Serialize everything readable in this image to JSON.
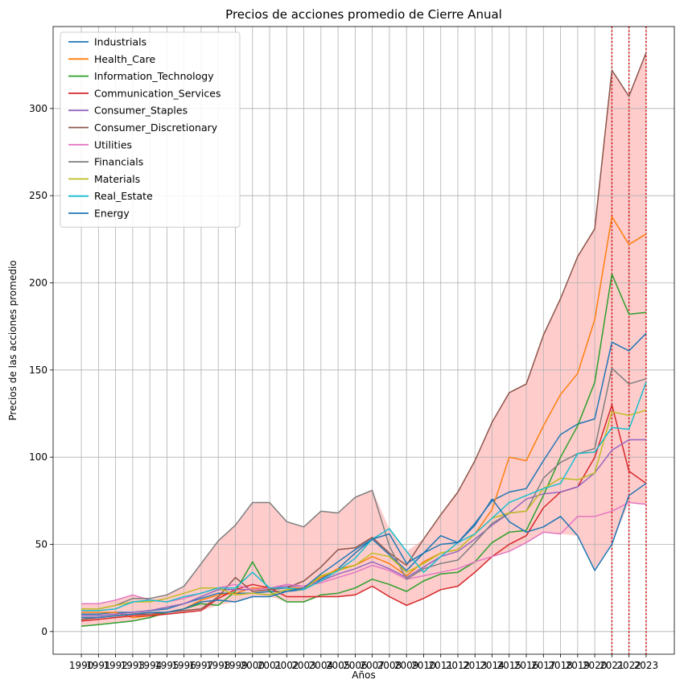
{
  "chart_data": {
    "type": "line",
    "title": "Precios de acciones promedio de Cierre Anual",
    "xlabel": "Años",
    "ylabel": "Precios de las acciones promedio",
    "x": [
      1990,
      1991,
      1992,
      1993,
      1994,
      1995,
      1996,
      1997,
      1998,
      1999,
      2000,
      2001,
      2002,
      2003,
      2004,
      2005,
      2006,
      2007,
      2008,
      2009,
      2010,
      2011,
      2012,
      2013,
      2014,
      2015,
      2016,
      2017,
      2018,
      2019,
      2020,
      2021,
      2022,
      2023
    ],
    "x_tick_labels": [
      "1990",
      "1991",
      "1992",
      "1993",
      "1994",
      "1995",
      "1996",
      "1997",
      "1998",
      "1999",
      "2000",
      "2001",
      "2002",
      "2003",
      "2004",
      "2005",
      "2006",
      "2007",
      "2008",
      "2009",
      "2010",
      "2011",
      "2012",
      "2013",
      "2014",
      "2015",
      "2016",
      "2017",
      "2018",
      "2019",
      "2020",
      "2021",
      "2022",
      "2023"
    ],
    "ylim": [
      -13,
      347
    ],
    "y_ticks": [
      0,
      50,
      100,
      150,
      200,
      250,
      300
    ],
    "grid": true,
    "legend_position": "top-left",
    "shaded_band": {
      "between": [
        "min",
        "max"
      ],
      "color": "#ffcccc"
    },
    "vertical_lines": {
      "x": [
        2021,
        2022,
        2023
      ],
      "color": "#dd0000",
      "style": "dotted"
    },
    "series": [
      {
        "name": "Industrials",
        "color": "#1f77b4",
        "values": [
          10,
          10,
          11,
          11,
          12,
          13,
          16,
          19,
          22,
          22,
          22,
          23,
          23,
          24,
          30,
          36,
          45,
          53,
          44,
          35,
          45,
          55,
          51,
          62,
          75,
          80,
          82,
          98,
          113,
          119,
          122,
          166,
          161,
          171
        ]
      },
      {
        "name": "Health_Care",
        "color": "#ff7f0e",
        "values": [
          11,
          11,
          11,
          8,
          9,
          11,
          13,
          18,
          21,
          22,
          25,
          25,
          25,
          25,
          31,
          36,
          38,
          43,
          39,
          32,
          40,
          45,
          47,
          56,
          70,
          100,
          98,
          118,
          136,
          148,
          179,
          238,
          222,
          228
        ]
      },
      {
        "name": "Information_Technology",
        "color": "#2ca02c",
        "values": [
          3,
          4,
          5,
          6,
          8,
          11,
          13,
          16,
          15,
          23,
          40,
          23,
          17,
          17,
          21,
          22,
          25,
          30,
          27,
          23,
          29,
          33,
          34,
          40,
          51,
          57,
          58,
          78,
          100,
          118,
          143,
          205,
          182,
          183
        ]
      },
      {
        "name": "Communication_Services",
        "color": "#d62728",
        "values": [
          6,
          7,
          8,
          9,
          9,
          10,
          11,
          12,
          19,
          24,
          27,
          25,
          20,
          20,
          20,
          20,
          21,
          26,
          20,
          15,
          19,
          24,
          26,
          34,
          43,
          50,
          55,
          71,
          80,
          83,
          100,
          130,
          92,
          85
        ]
      },
      {
        "name": "Consumer_Staples",
        "color": "#9467bd",
        "values": [
          9,
          9,
          10,
          11,
          12,
          14,
          16,
          20,
          24,
          24,
          24,
          25,
          26,
          26,
          29,
          33,
          36,
          40,
          36,
          31,
          37,
          43,
          46,
          53,
          61,
          68,
          76,
          79,
          80,
          83,
          91,
          104,
          110,
          110
        ]
      },
      {
        "name": "Consumer_Discretionary",
        "color": "#8c564b",
        "values": [
          7,
          8,
          9,
          10,
          10,
          11,
          12,
          13,
          20,
          31,
          23,
          24,
          25,
          29,
          37,
          47,
          48,
          54,
          45,
          38,
          53,
          67,
          80,
          98,
          120,
          137,
          142,
          170,
          191,
          215,
          231,
          322,
          307,
          332
        ]
      },
      {
        "name": "Utilities",
        "color": "#e377c2",
        "values": [
          16,
          16,
          18,
          21,
          18,
          17,
          19,
          22,
          25,
          27,
          24,
          25,
          27,
          26,
          28,
          31,
          34,
          38,
          35,
          30,
          32,
          34,
          36,
          40,
          43,
          46,
          51,
          57,
          56,
          66,
          66,
          69,
          74,
          73
        ]
      },
      {
        "name": "Financials",
        "color": "#7f7f7f",
        "values": [
          13,
          13,
          15,
          19,
          19,
          21,
          26,
          39,
          52,
          61,
          74,
          74,
          63,
          60,
          69,
          68,
          77,
          81,
          49,
          30,
          36,
          39,
          41,
          51,
          62,
          68,
          69,
          88,
          97,
          102,
          105,
          151,
          142,
          145
        ]
      },
      {
        "name": "Materials",
        "color": "#bcbd22",
        "values": [
          13,
          13,
          15,
          17,
          17,
          19,
          22,
          25,
          25,
          21,
          22,
          21,
          24,
          24,
          32,
          35,
          38,
          45,
          43,
          34,
          39,
          45,
          47,
          56,
          65,
          68,
          69,
          82,
          88,
          87,
          91,
          126,
          124,
          127
        ]
      },
      {
        "name": "Real_Estate",
        "color": "#17becf",
        "values": [
          12,
          12,
          13,
          17,
          18,
          17,
          20,
          22,
          25,
          25,
          34,
          25,
          25,
          24,
          29,
          35,
          42,
          53,
          59,
          46,
          34,
          43,
          51,
          56,
          65,
          74,
          78,
          82,
          85,
          102,
          103,
          117,
          116,
          143
        ]
      },
      {
        "name": "Energy",
        "color": "#1f77b4",
        "values": [
          8,
          8,
          9,
          10,
          11,
          11,
          13,
          17,
          18,
          17,
          20,
          20,
          23,
          25,
          33,
          40,
          47,
          53,
          56,
          39,
          45,
          50,
          51,
          61,
          76,
          63,
          57,
          60,
          66,
          55,
          35,
          50,
          78,
          85
        ]
      }
    ]
  }
}
